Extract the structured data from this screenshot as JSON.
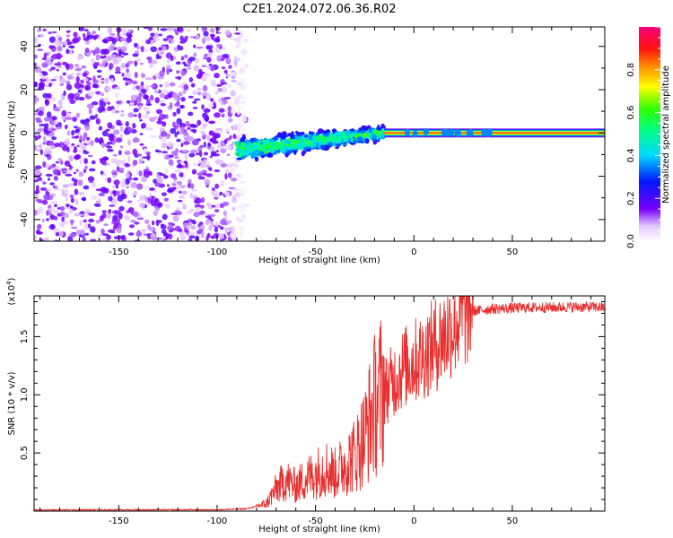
{
  "title": "C2E1.2024.072.06.36.R02",
  "colors": {
    "snr_line": "#e8302f",
    "axis": "#000000",
    "spec_low": "#e4c8ff",
    "spec_mid": "#7a00ff"
  },
  "chart_data": [
    {
      "type": "heatmap",
      "name": "spectrogram",
      "xlabel": "Height of straight line (km)",
      "ylabel": "Frequency (Hz)",
      "xlim": [
        -193,
        97
      ],
      "ylim": [
        -50,
        49
      ],
      "xticks": [
        -150,
        -100,
        -50,
        0,
        50
      ],
      "yticks": [
        -40,
        -20,
        0,
        20,
        40
      ],
      "xtick_labels": [
        "-150",
        "-100",
        "-50",
        "0",
        "50"
      ],
      "ytick_labels": [
        "-40",
        "-20",
        "0",
        "20",
        "40"
      ],
      "description_segments": [
        {
          "x_range": [
            -193,
            -85
          ],
          "pattern": "broadband noise",
          "amplitude": 0.15
        },
        {
          "x_range": [
            -90,
            -15
          ],
          "pattern": "noisy band near 0 Hz",
          "center_hz": [
            -8,
            0
          ],
          "amplitude": 0.4
        },
        {
          "x_range": [
            -15,
            97
          ],
          "pattern": "narrow line at 0 Hz",
          "center_hz": 0,
          "amplitude": 0.85
        }
      ],
      "colorbar": {
        "label": "Normalized spectral amplitude",
        "range": [
          0.0,
          1.0
        ],
        "ticks": [
          0.0,
          0.2,
          0.4,
          0.6,
          0.8
        ],
        "tick_labels": [
          "0.0",
          "0.2",
          "0.4",
          "0.6",
          "0.8"
        ]
      }
    },
    {
      "type": "line",
      "name": "snr",
      "xlabel": "Height of straight line (km)",
      "ylabel": "SNR (10 * v/v)",
      "scale_label": "(x10",
      "scale_exp": "4",
      "scale_close": ")",
      "xlim": [
        -193,
        97
      ],
      "ylim": [
        0,
        18500
      ],
      "xticks": [
        -150,
        -100,
        -50,
        0,
        50
      ],
      "yticks": [
        5000,
        10000,
        15000
      ],
      "xtick_labels": [
        "-150",
        "-100",
        "-50",
        "0",
        "50"
      ],
      "ytick_labels": [
        "0.5",
        "1.0",
        "1.5"
      ],
      "series": [
        {
          "name": "SNR",
          "x": [
            -193,
            -100,
            -85,
            -75,
            -70,
            -65,
            -60,
            -55,
            -50,
            -45,
            -40,
            -35,
            -30,
            -25,
            -20,
            -15,
            -10,
            -5,
            0,
            5,
            10,
            15,
            20,
            25,
            30,
            35,
            40,
            50,
            60,
            70,
            80,
            90,
            97
          ],
          "y": [
            100,
            120,
            200,
            600,
            1800,
            2500,
            2000,
            2600,
            3000,
            3500,
            3000,
            3800,
            4500,
            6000,
            8500,
            10000,
            11000,
            12000,
            12500,
            13000,
            13800,
            14500,
            15500,
            16500,
            17200,
            17300,
            17400,
            17450,
            17500,
            17500,
            17550,
            17550,
            17500
          ]
        }
      ]
    }
  ]
}
